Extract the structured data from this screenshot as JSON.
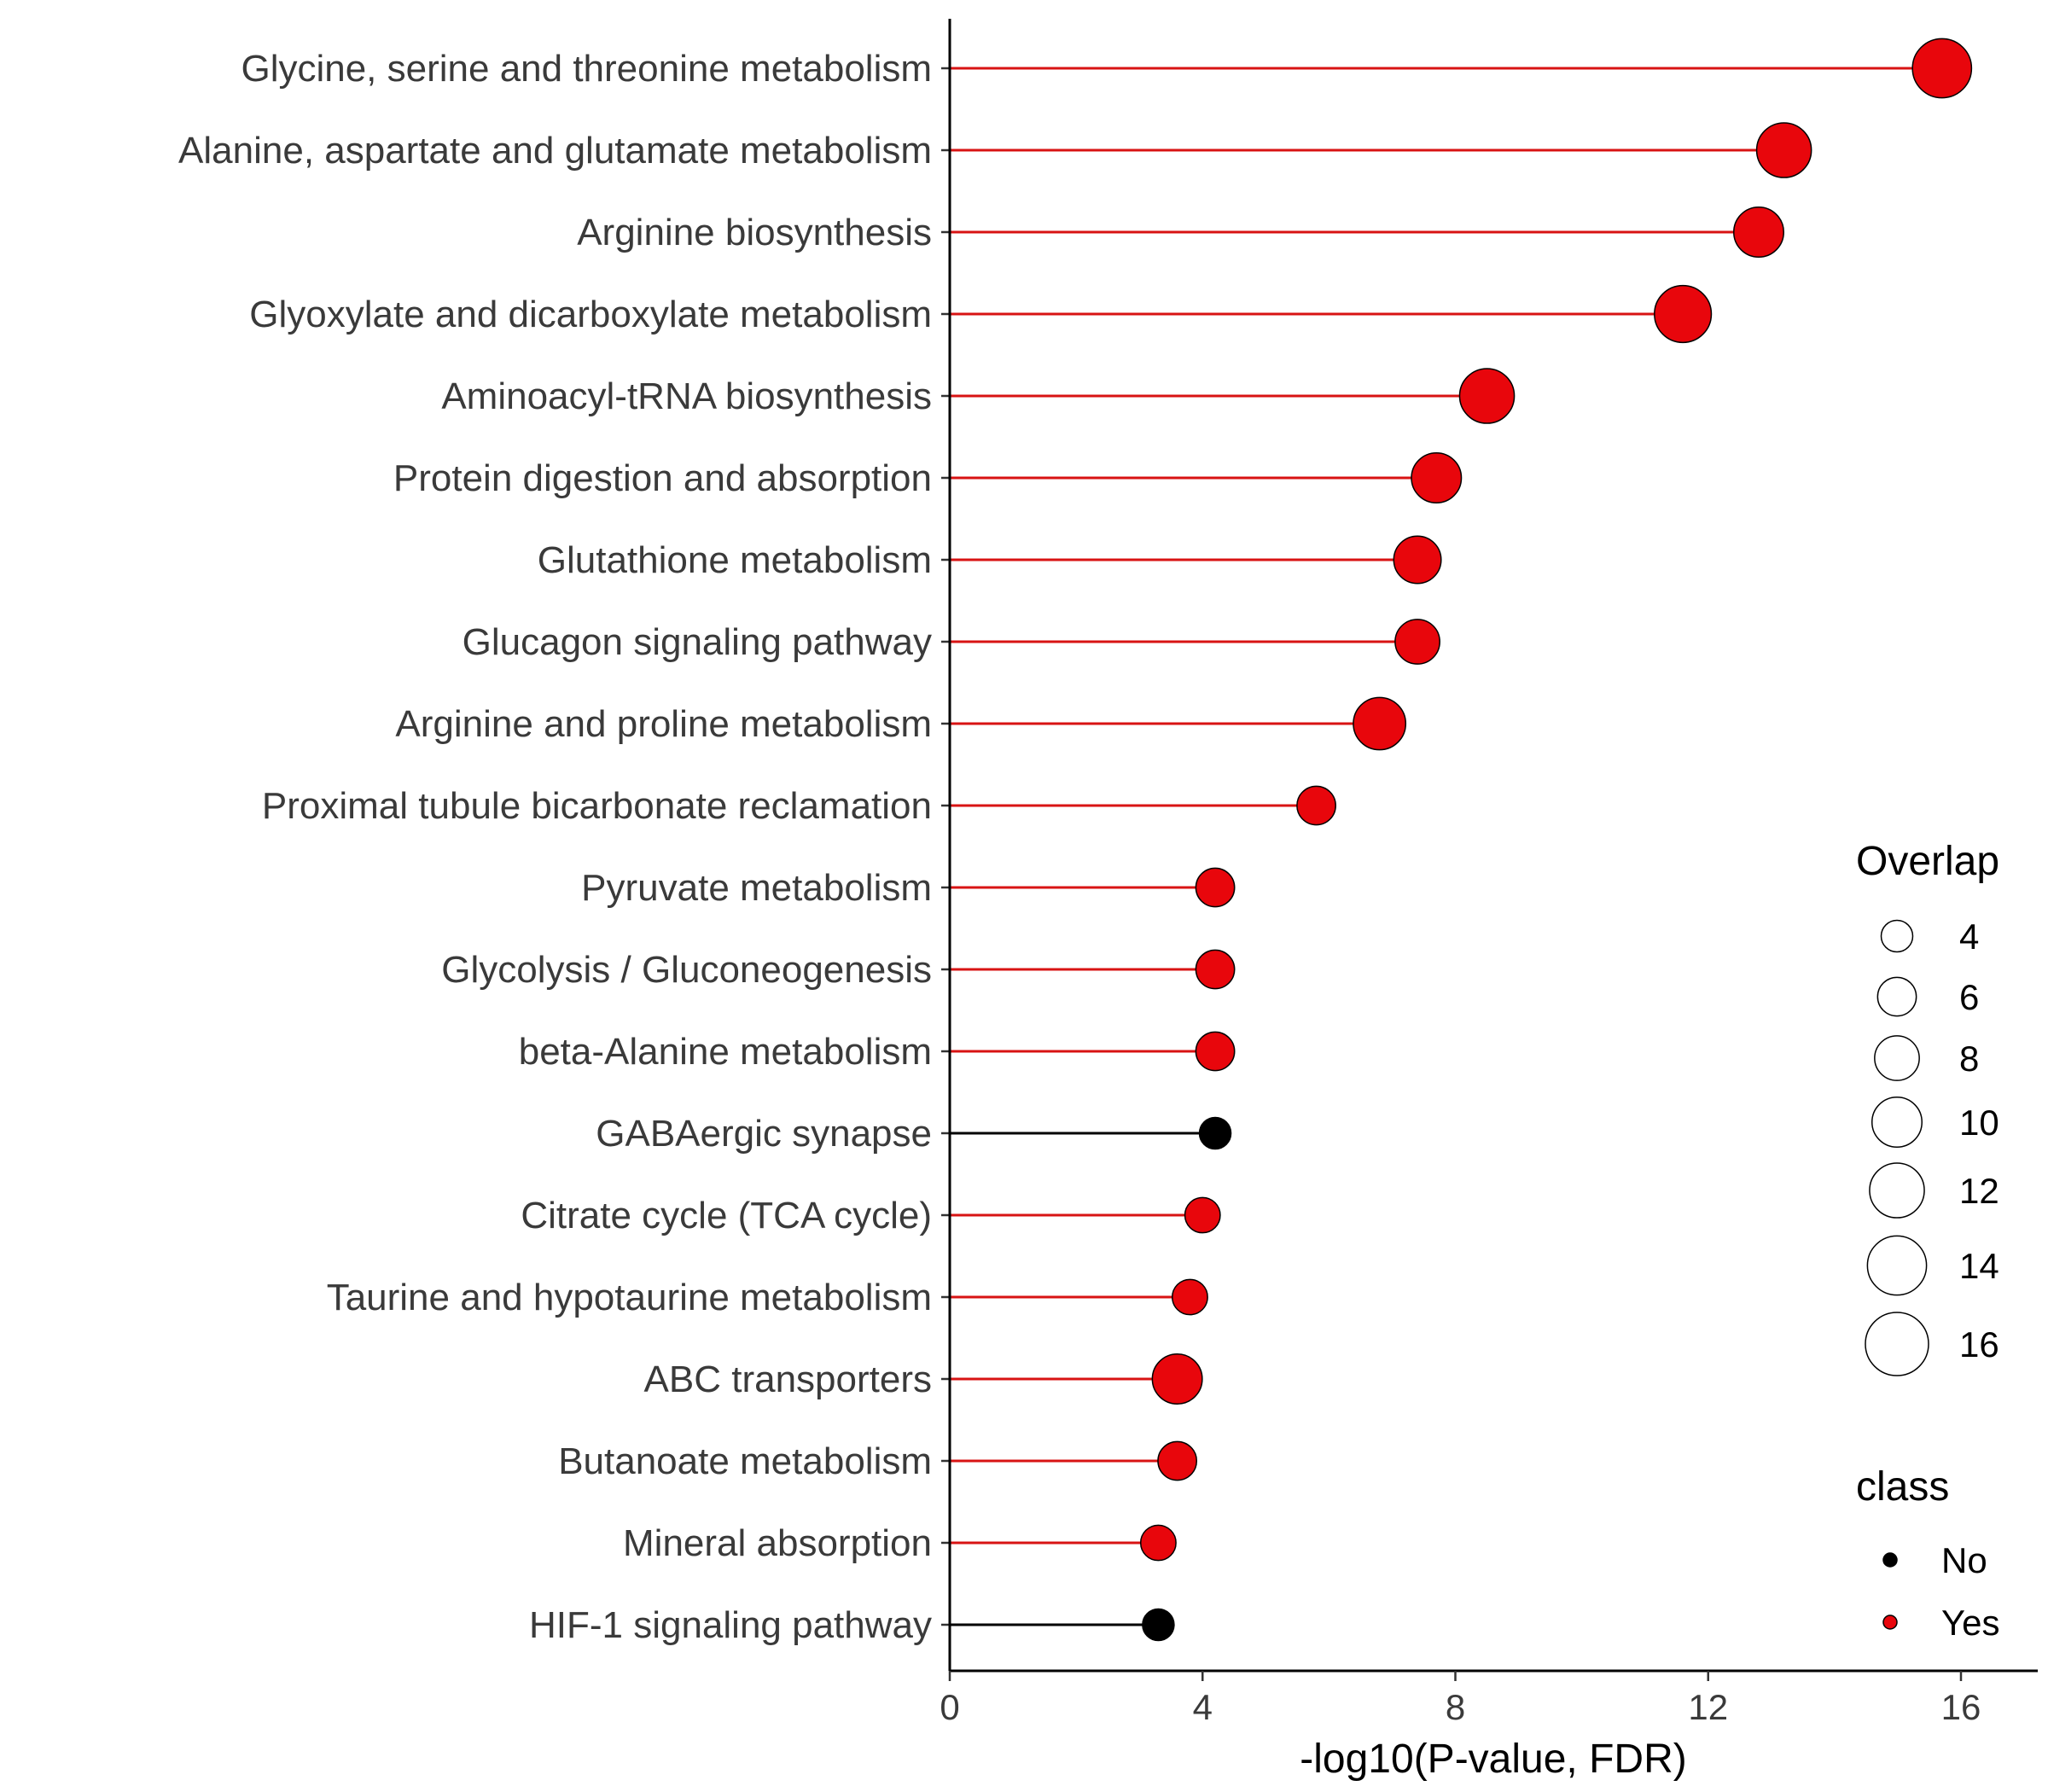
{
  "chart_data": {
    "type": "scatter",
    "subtype": "lollipop",
    "xlabel": "-log10(P-value, FDR)",
    "ylabel": "",
    "xlim": [
      0,
      17.2
    ],
    "xticks": [
      0,
      4,
      8,
      12,
      16
    ],
    "grid": false,
    "legend_position": "right",
    "size_legend": {
      "title": "Overlap",
      "values": [
        4,
        6,
        8,
        10,
        12,
        14,
        16
      ]
    },
    "color_legend": {
      "title": "class",
      "entries": [
        {
          "label": "No",
          "color": "#000000"
        },
        {
          "label": "Yes",
          "color": "#e8060c"
        }
      ]
    },
    "colors": {
      "Yes": "#e8060c",
      "No": "#000000",
      "segment_yes": "#d81313",
      "segment_no": "#000000"
    },
    "points": [
      {
        "label": "Glycine, serine and threonine metabolism",
        "x": 15.7,
        "overlap": 14,
        "class": "Yes"
      },
      {
        "label": "Alanine, aspartate and glutamate metabolism",
        "x": 13.2,
        "overlap": 12,
        "class": "Yes"
      },
      {
        "label": "Arginine biosynthesis",
        "x": 12.8,
        "overlap": 10,
        "class": "Yes"
      },
      {
        "label": "Glyoxylate and dicarboxylate metabolism",
        "x": 11.6,
        "overlap": 13,
        "class": "Yes"
      },
      {
        "label": "Aminoacyl-tRNA biosynthesis",
        "x": 8.5,
        "overlap": 12,
        "class": "Yes"
      },
      {
        "label": "Protein digestion and absorption",
        "x": 7.7,
        "overlap": 10,
        "class": "Yes"
      },
      {
        "label": "Glutathione metabolism",
        "x": 7.4,
        "overlap": 9,
        "class": "Yes"
      },
      {
        "label": "Glucagon signaling pathway",
        "x": 7.4,
        "overlap": 8,
        "class": "Yes"
      },
      {
        "label": "Arginine and proline metabolism",
        "x": 6.8,
        "overlap": 11,
        "class": "Yes"
      },
      {
        "label": "Proximal tubule bicarbonate reclamation",
        "x": 5.8,
        "overlap": 6,
        "class": "Yes"
      },
      {
        "label": "Pyruvate metabolism",
        "x": 4.2,
        "overlap": 6,
        "class": "Yes"
      },
      {
        "label": "Glycolysis / Gluconeogenesis",
        "x": 4.2,
        "overlap": 6,
        "class": "Yes"
      },
      {
        "label": "beta-Alanine metabolism",
        "x": 4.2,
        "overlap": 6,
        "class": "Yes"
      },
      {
        "label": "GABAergic synapse",
        "x": 4.2,
        "overlap": 4,
        "class": "No"
      },
      {
        "label": "Citrate cycle (TCA cycle)",
        "x": 4.0,
        "overlap": 5,
        "class": "Yes"
      },
      {
        "label": "Taurine and hypotaurine metabolism",
        "x": 3.8,
        "overlap": 5,
        "class": "Yes"
      },
      {
        "label": "ABC transporters",
        "x": 3.6,
        "overlap": 10,
        "class": "Yes"
      },
      {
        "label": "Butanoate metabolism",
        "x": 3.6,
        "overlap": 6,
        "class": "Yes"
      },
      {
        "label": "Mineral absorption",
        "x": 3.3,
        "overlap": 5,
        "class": "Yes"
      },
      {
        "label": "HIF-1 signaling pathway",
        "x": 3.3,
        "overlap": 4,
        "class": "No"
      }
    ]
  }
}
